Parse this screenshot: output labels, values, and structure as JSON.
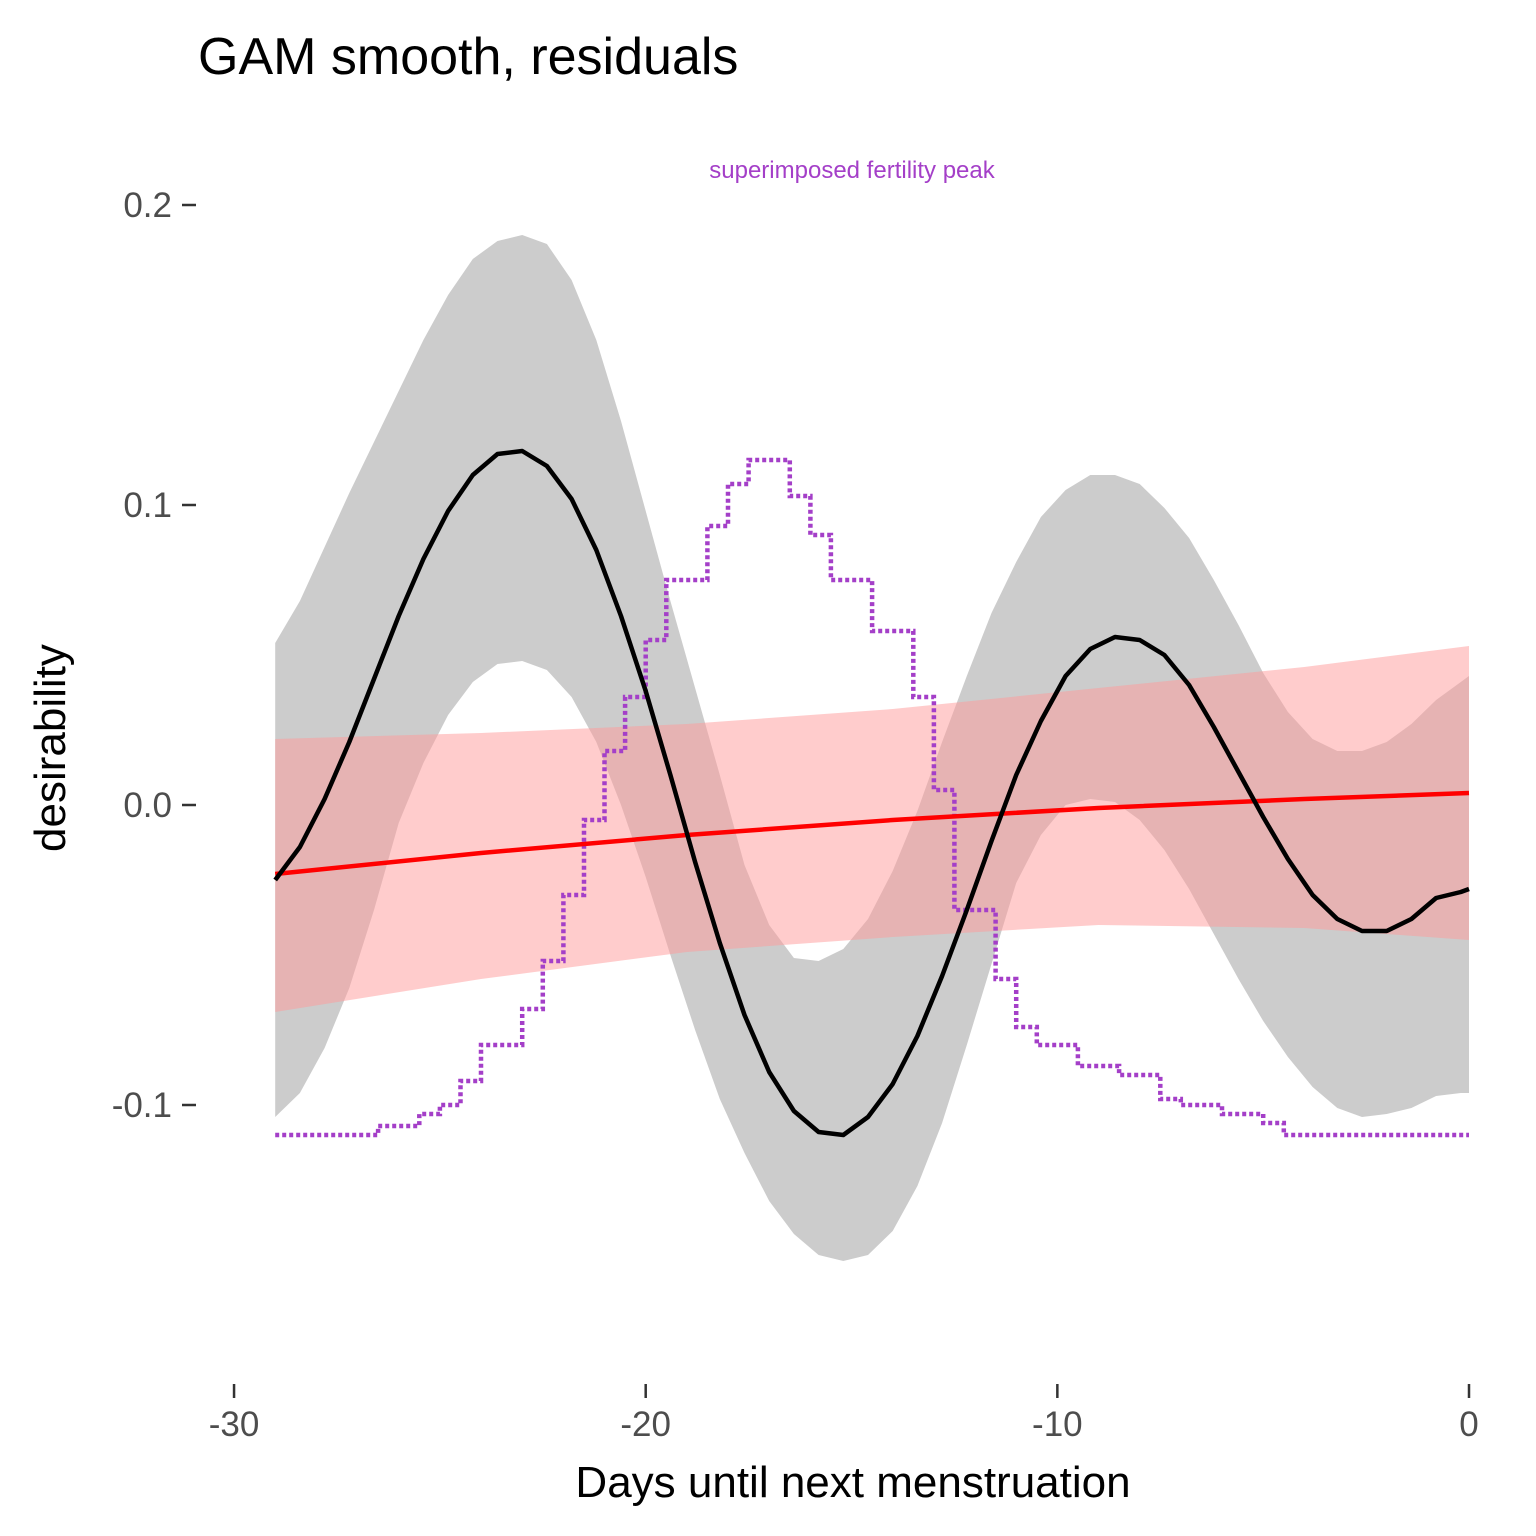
{
  "chart_data": {
    "type": "line",
    "title": "GAM smooth, residuals",
    "xlabel": "Days until next menstruation",
    "ylabel": "desirability",
    "annotation": "superimposed fertility peak",
    "xlim": [
      -30.9,
      0
    ],
    "ylim": [
      -0.185,
      0.21
    ],
    "xticks": [
      -30,
      -20,
      -10,
      0
    ],
    "xtick_labels": [
      "-30",
      "-20",
      "-10",
      "0"
    ],
    "yticks": [
      -0.1,
      0.0,
      0.1,
      0.2
    ],
    "ytick_labels": [
      "-0.1",
      "0.0",
      "0.1",
      "0.2"
    ],
    "grid": false,
    "series": [
      {
        "style": "gam smooth with confidence band",
        "x": [
          -29,
          -28.4,
          -27.8,
          -27.2,
          -26.6,
          -26,
          -25.4,
          -24.8,
          -24.2,
          -23.6,
          -23,
          -22.4,
          -21.8,
          -21.2,
          -20.6,
          -20,
          -19.4,
          -18.8,
          -18.2,
          -17.6,
          -17,
          -16.4,
          -15.8,
          -15.2,
          -14.6,
          -14,
          -13.4,
          -12.8,
          -12.2,
          -11.6,
          -11,
          -10.4,
          -9.8,
          -9.2,
          -8.6,
          -8,
          -7.4,
          -6.8,
          -6.2,
          -5.6,
          -5,
          -4.4,
          -3.8,
          -3.2,
          -2.6,
          -2,
          -1.4,
          -0.8,
          -0.2,
          0
        ],
        "y": [
          -0.025,
          -0.014,
          0.002,
          0.021,
          0.042,
          0.063,
          0.082,
          0.098,
          0.11,
          0.117,
          0.118,
          0.113,
          0.102,
          0.085,
          0.063,
          0.038,
          0.01,
          -0.019,
          -0.046,
          -0.07,
          -0.089,
          -0.102,
          -0.109,
          -0.11,
          -0.104,
          -0.093,
          -0.077,
          -0.057,
          -0.035,
          -0.012,
          0.01,
          0.028,
          0.043,
          0.052,
          0.056,
          0.055,
          0.05,
          0.04,
          0.026,
          0.011,
          -0.004,
          -0.018,
          -0.03,
          -0.038,
          -0.042,
          -0.042,
          -0.038,
          -0.031,
          -0.029,
          -0.028
        ],
        "lower": [
          -0.104,
          -0.096,
          -0.081,
          -0.061,
          -0.035,
          -0.006,
          0.014,
          0.03,
          0.041,
          0.047,
          0.048,
          0.045,
          0.036,
          0.021,
          0.0,
          -0.024,
          -0.05,
          -0.075,
          -0.098,
          -0.116,
          -0.132,
          -0.143,
          -0.15,
          -0.152,
          -0.15,
          -0.142,
          -0.127,
          -0.106,
          -0.08,
          -0.053,
          -0.026,
          -0.01,
          0.0,
          0.002,
          0.001,
          -0.005,
          -0.015,
          -0.028,
          -0.043,
          -0.058,
          -0.072,
          -0.084,
          -0.094,
          -0.101,
          -0.104,
          -0.103,
          -0.101,
          -0.097,
          -0.096,
          -0.096
        ],
        "upper": [
          0.054,
          0.068,
          0.086,
          0.104,
          0.121,
          0.138,
          0.155,
          0.17,
          0.182,
          0.188,
          0.19,
          0.187,
          0.175,
          0.155,
          0.128,
          0.098,
          0.068,
          0.039,
          0.01,
          -0.02,
          -0.04,
          -0.051,
          -0.052,
          -0.048,
          -0.038,
          -0.022,
          -0.002,
          0.021,
          0.043,
          0.064,
          0.081,
          0.096,
          0.105,
          0.11,
          0.11,
          0.107,
          0.099,
          0.089,
          0.075,
          0.06,
          0.044,
          0.031,
          0.022,
          0.018,
          0.018,
          0.021,
          0.027,
          0.035,
          0.041,
          0.043
        ],
        "color": "#000000",
        "band_color": "#cccccc"
      },
      {
        "style": "linear fit with confidence band",
        "x": [
          -29,
          -24,
          -19,
          -14,
          -9,
          -4,
          0
        ],
        "y": [
          -0.023,
          -0.016,
          -0.01,
          -0.005,
          -0.001,
          0.002,
          0.004
        ],
        "lower": [
          -0.069,
          -0.058,
          -0.049,
          -0.044,
          -0.04,
          -0.041,
          -0.045
        ],
        "upper": [
          0.022,
          0.024,
          0.027,
          0.032,
          0.039,
          0.046,
          0.053
        ],
        "color": "#ff0000",
        "band_color": "#ff9999"
      },
      {
        "style": "dotted step line",
        "x": [
          -29,
          -26.5,
          -26.5,
          -25.5,
          -25.5,
          -25,
          -25,
          -24.5,
          -24.5,
          -24,
          -24,
          -23,
          -23,
          -22.5,
          -22.5,
          -22,
          -22,
          -21.5,
          -21.5,
          -21,
          -21,
          -20.5,
          -20.5,
          -20,
          -20,
          -19.5,
          -19.5,
          -18.5,
          -18.5,
          -18,
          -18,
          -17.5,
          -17.5,
          -16.5,
          -16.5,
          -16,
          -16,
          -15.5,
          -15.5,
          -14.5,
          -14.5,
          -13.5,
          -13.5,
          -13,
          -13,
          -12.5,
          -12.5,
          -11.5,
          -11.5,
          -11,
          -11,
          -10.5,
          -10.5,
          -9.5,
          -9.5,
          -8.5,
          -8.5,
          -7.5,
          -7.5,
          -7,
          -7,
          -6,
          -6,
          -5,
          -5,
          -4.5,
          -4.5,
          0
        ],
        "y": [
          -0.11,
          -0.11,
          -0.107,
          -0.107,
          -0.103,
          -0.103,
          -0.1,
          -0.1,
          -0.092,
          -0.092,
          -0.08,
          -0.08,
          -0.068,
          -0.068,
          -0.052,
          -0.052,
          -0.03,
          -0.03,
          -0.005,
          -0.005,
          0.018,
          0.018,
          0.036,
          0.036,
          0.055,
          0.055,
          0.075,
          0.075,
          0.093,
          0.093,
          0.107,
          0.107,
          0.115,
          0.115,
          0.103,
          0.103,
          0.09,
          0.09,
          0.075,
          0.075,
          0.058,
          0.058,
          0.036,
          0.036,
          0.005,
          0.005,
          -0.035,
          -0.035,
          -0.058,
          -0.058,
          -0.074,
          -0.074,
          -0.08,
          -0.08,
          -0.087,
          -0.087,
          -0.09,
          -0.09,
          -0.098,
          -0.098,
          -0.1,
          -0.1,
          -0.103,
          -0.103,
          -0.106,
          -0.106,
          -0.11,
          -0.11
        ],
        "color": "#a43fc8"
      }
    ]
  }
}
